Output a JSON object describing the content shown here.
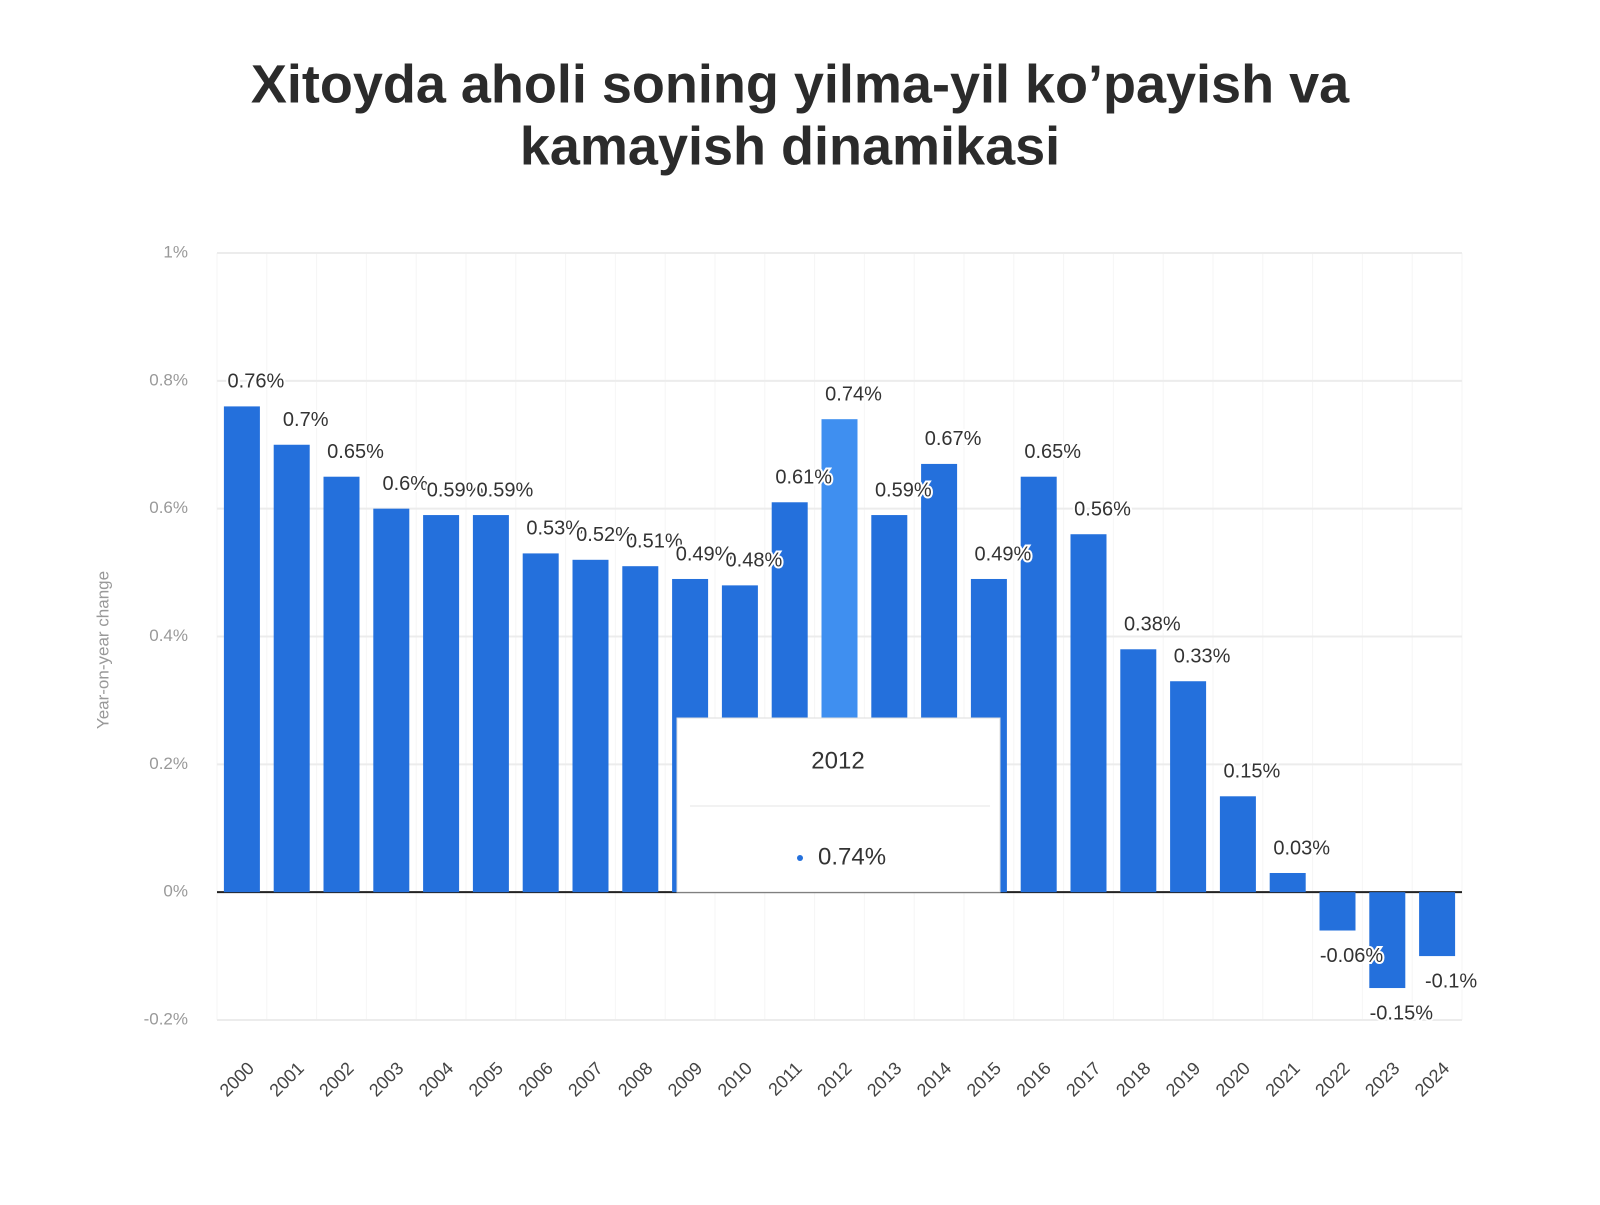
{
  "chart_data": {
    "type": "bar",
    "title": "Xitoyda aholi soning yilma-yil ko’payish va kamayish dinamikasi",
    "y_label": "Year-on-year change",
    "categories": [
      "2000",
      "2001",
      "2002",
      "2003",
      "2004",
      "2005",
      "2006",
      "2007",
      "2008",
      "2009",
      "2010",
      "2011",
      "2012",
      "2013",
      "2014",
      "2015",
      "2016",
      "2017",
      "2018",
      "2019",
      "2020",
      "2021",
      "2022",
      "2023",
      "2024"
    ],
    "values": [
      0.76,
      0.7,
      0.65,
      0.6,
      0.59,
      0.59,
      0.53,
      0.52,
      0.51,
      0.49,
      0.48,
      0.61,
      0.74,
      0.59,
      0.67,
      0.49,
      0.65,
      0.56,
      0.38,
      0.33,
      0.15,
      0.03,
      -0.06,
      -0.15,
      -0.1
    ],
    "value_labels": [
      "0.76%",
      "0.7%",
      "0.65%",
      "0.6%",
      "0.59%",
      "0.59%",
      "0.53%",
      "0.52%",
      "0.51%",
      "0.49%",
      "0.48%",
      "0.61%",
      "0.74%",
      "0.59%",
      "0.67%",
      "0.49%",
      "0.65%",
      "0.56%",
      "0.38%",
      "0.33%",
      "0.15%",
      "0.03%",
      "-0.06%",
      "-0.15%",
      "-0.1%"
    ],
    "color": "#2470dc",
    "highlight_color": "#3f8ff0",
    "ylim": [
      -0.2,
      1
    ],
    "yticks": [
      {
        "value": -0.2,
        "label": "-0.2%"
      },
      {
        "value": 0,
        "label": "0%"
      },
      {
        "value": 0.2,
        "label": "0.2%"
      },
      {
        "value": 0.4,
        "label": "0.4%"
      },
      {
        "value": 0.6,
        "label": "0.6%"
      },
      {
        "value": 0.8,
        "label": "0.8%"
      },
      {
        "value": 1,
        "label": "1%"
      }
    ],
    "grid": true,
    "tooltip": {
      "category": "2012",
      "value_label": "0.74%"
    }
  }
}
